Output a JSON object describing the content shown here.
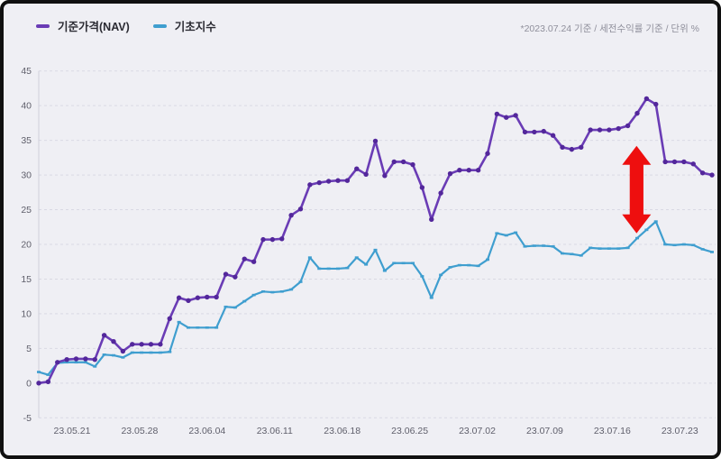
{
  "legend": {
    "nav_label": "기준가격(NAV)",
    "index_label": "기초지수"
  },
  "note": "*2023.07.24 기준 / 세전수익률 기준 / 단위 %",
  "chart_data": {
    "type": "line",
    "title": "",
    "as_of": "2023.07.24",
    "unit": "%",
    "grid": "horizontal-dashed",
    "legend_position": "top-left",
    "ylim": [
      -5,
      45
    ],
    "yticks": [
      45,
      40,
      35,
      30,
      25,
      20,
      15,
      10,
      5,
      0,
      -5
    ],
    "x_tick_labels": [
      "23.05.21",
      "23.05.28",
      "23.06.04",
      "23.06.11",
      "23.06.18",
      "23.06.25",
      "23.07.02",
      "23.07.09",
      "23.07.16",
      "23.07.23"
    ],
    "series": [
      {
        "name": "기준가격(NAV)",
        "color": "#6a3cb5",
        "marker_color": "#53279b",
        "values": [
          0.0,
          0.2,
          3.0,
          3.4,
          3.5,
          3.5,
          3.4,
          6.9,
          6.0,
          4.6,
          5.6,
          5.6,
          5.6,
          5.6,
          9.3,
          12.3,
          11.9,
          12.3,
          12.4,
          12.4,
          15.7,
          15.3,
          17.9,
          17.5,
          20.7,
          20.7,
          20.8,
          24.2,
          25.1,
          28.6,
          28.9,
          29.1,
          29.2,
          29.2,
          30.9,
          30.1,
          34.9,
          29.9,
          31.9,
          31.9,
          31.5,
          28.2,
          23.6,
          27.4,
          30.2,
          30.7,
          30.7,
          30.7,
          33.1,
          38.8,
          38.3,
          38.6,
          36.2,
          36.2,
          36.3,
          35.7,
          34.0,
          33.7,
          34.0,
          36.5,
          36.5,
          36.5,
          36.7,
          37.1,
          38.9,
          41.0,
          40.2,
          31.9,
          31.9,
          31.9,
          31.6,
          30.3,
          30.0
        ]
      },
      {
        "name": "기초지수",
        "color": "#3f9ecf",
        "marker_color": "#3f9ecf",
        "values": [
          1.6,
          1.2,
          2.9,
          3.0,
          3.0,
          3.0,
          2.4,
          4.1,
          4.0,
          3.7,
          4.4,
          4.4,
          4.4,
          4.4,
          4.5,
          8.8,
          8.0,
          8.0,
          8.0,
          8.0,
          11.0,
          10.9,
          11.8,
          12.7,
          13.2,
          13.1,
          13.2,
          13.5,
          14.6,
          18.1,
          16.5,
          16.5,
          16.5,
          16.6,
          18.1,
          17.1,
          19.2,
          16.2,
          17.3,
          17.3,
          17.3,
          15.4,
          12.3,
          15.6,
          16.7,
          17.0,
          17.0,
          16.9,
          17.8,
          21.6,
          21.3,
          21.7,
          19.7,
          19.8,
          19.8,
          19.7,
          18.7,
          18.6,
          18.4,
          19.5,
          19.4,
          19.4,
          19.4,
          19.5,
          20.9,
          22.1,
          23.3,
          20.0,
          19.9,
          20.0,
          19.9,
          19.3,
          18.9
        ]
      }
    ],
    "annotation": {
      "type": "vertical-double-arrow",
      "color": "#ee0f0f",
      "x_fraction": 0.888,
      "y_from": 21.6,
      "y_to": 34.2
    }
  }
}
